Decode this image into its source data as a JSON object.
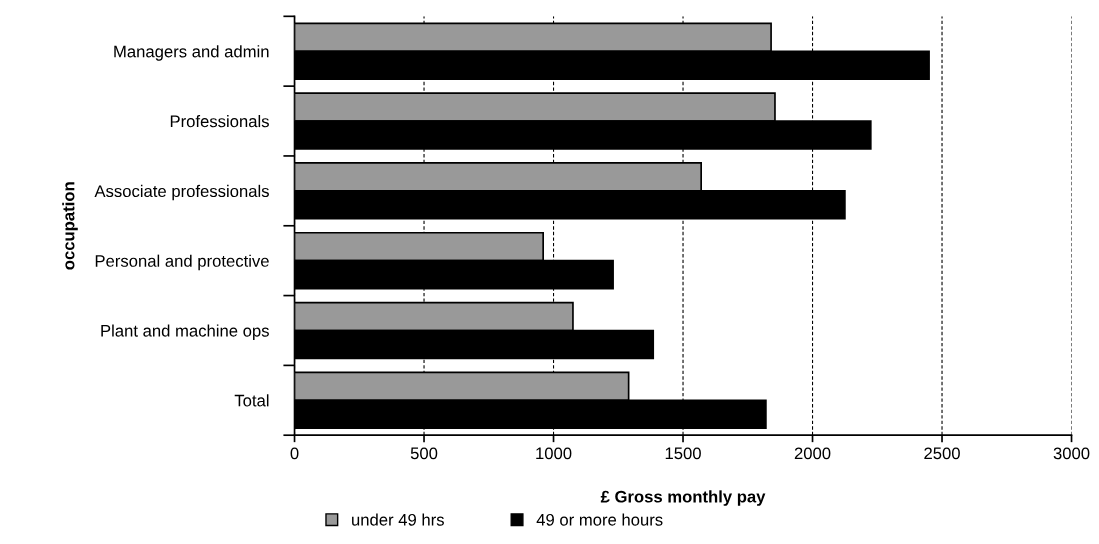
{
  "chart_data": {
    "type": "bar",
    "orientation": "horizontal",
    "xlabel": "£ Gross monthly pay",
    "ylabel": "occupation",
    "categories": [
      "Managers and admin",
      "Professionals",
      "Associate professionals",
      "Personal and protective",
      "Plant and machine ops",
      "Total"
    ],
    "series": [
      {
        "name": "under 49 hrs",
        "color": "#999999",
        "values": [
          1840,
          1855,
          1570,
          960,
          1075,
          1290
        ]
      },
      {
        "name": "49 or more hours",
        "color": "#000000",
        "values": [
          2450,
          2225,
          2125,
          1230,
          1385,
          1820
        ]
      }
    ],
    "xlim": [
      0,
      3000
    ],
    "xticks": [
      0,
      500,
      1000,
      1500,
      2000,
      2500,
      3000
    ],
    "grid": "x",
    "legend": "bottom"
  }
}
